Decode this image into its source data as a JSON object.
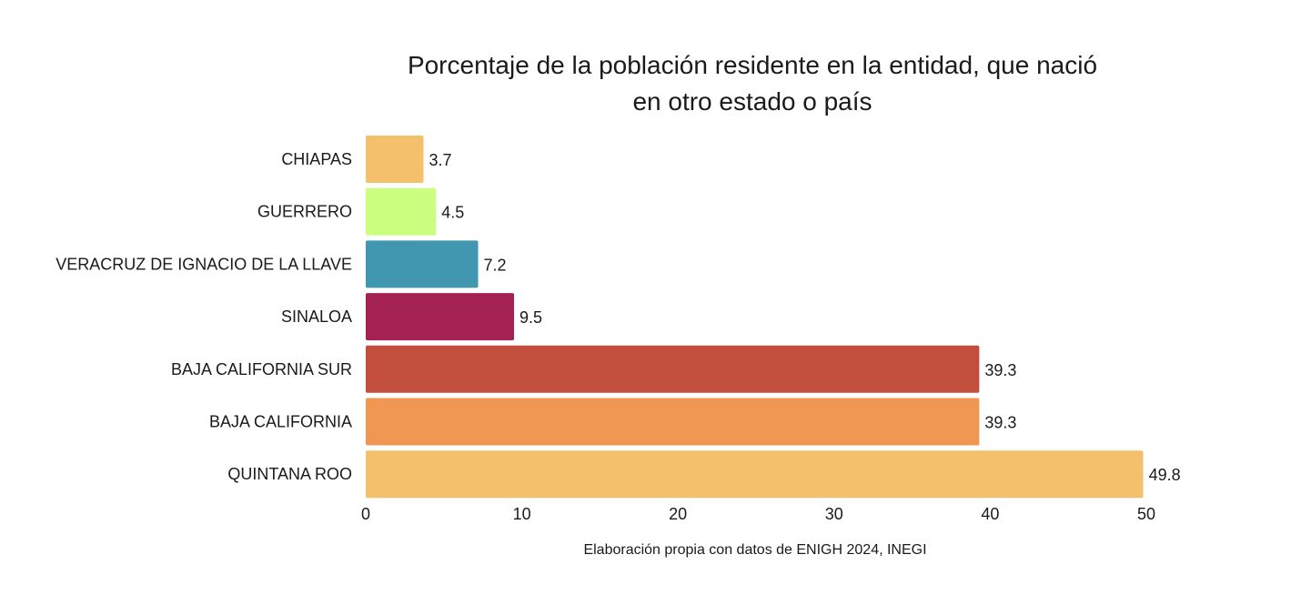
{
  "chart_data": {
    "type": "bar",
    "orientation": "horizontal",
    "title_lines": [
      "Porcentaje de la población residente en la entidad, que nació",
      "en otro estado o país"
    ],
    "xlabel": "Elaboración propia con datos de ENIGH 2024, INEGI",
    "ylabel": "",
    "categories": [
      "CHIAPAS",
      "GUERRERO",
      "VERACRUZ DE IGNACIO DE LA LLAVE",
      "SINALOA",
      "BAJA CALIFORNIA SUR",
      "BAJA CALIFORNIA",
      "QUINTANA ROO"
    ],
    "values": [
      3.7,
      4.5,
      7.2,
      9.5,
      39.3,
      39.3,
      49.8
    ],
    "value_labels": [
      "3.7",
      "4.5",
      "7.2",
      "9.5",
      "39.3",
      "39.3",
      "49.8"
    ],
    "colors": [
      "#f4c06b",
      "#ccff80",
      "#4196b0",
      "#a32153",
      "#c24e3e",
      "#f09754",
      "#f4c06b"
    ],
    "xlim": [
      0,
      50
    ],
    "xticks": [
      0,
      10,
      20,
      30,
      40,
      50
    ],
    "xtick_labels": [
      "0",
      "10",
      "20",
      "30",
      "40",
      "50"
    ],
    "grid": false,
    "legend": "none"
  }
}
